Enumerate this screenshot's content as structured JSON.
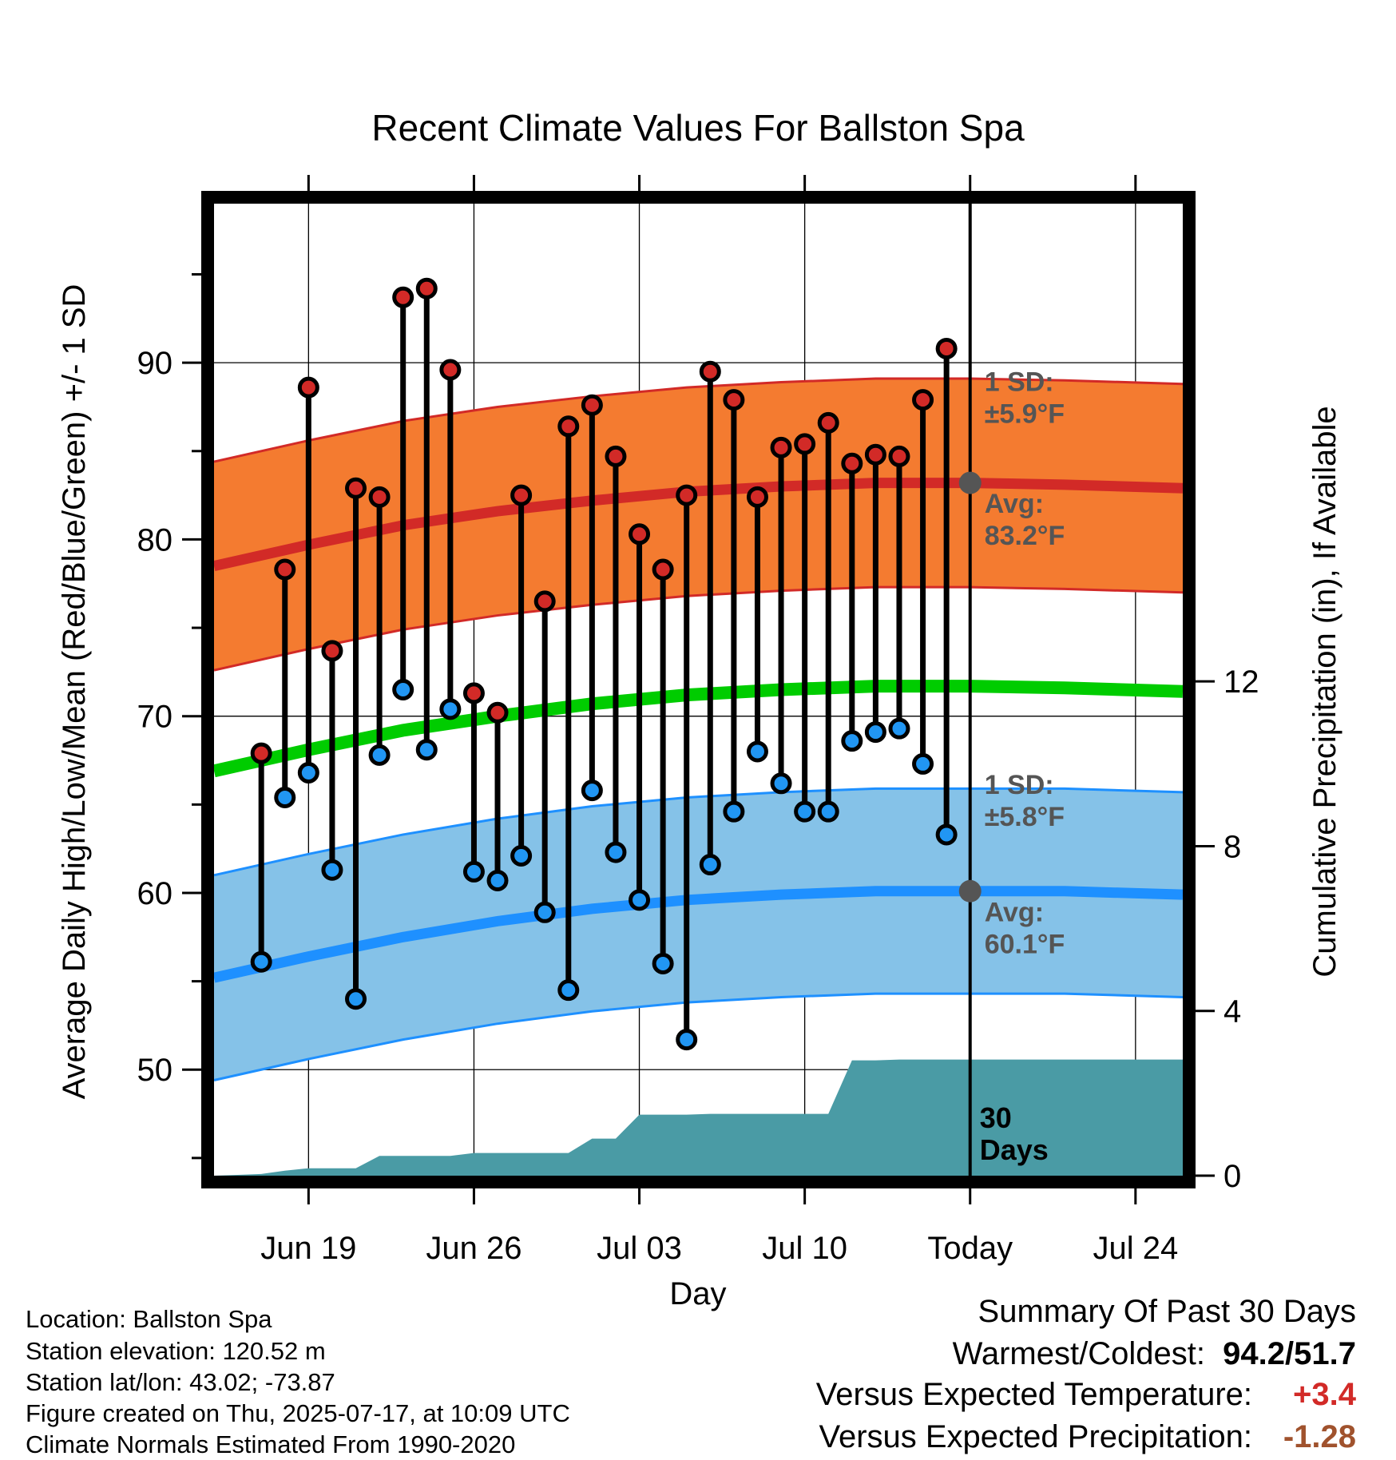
{
  "chart_data": {
    "type": "line",
    "title": "Recent Climate Values For Ballston Spa",
    "xlabel": "Day",
    "ylabel_left": "Average Daily High/Low/Mean (Red/Blue/Green) +/- 1 SD",
    "ylabel_right": "Cumulative Precipitation (in), If Available",
    "x_range": [
      "2025-06-15",
      "2025-07-26"
    ],
    "y_range_left": [
      44,
      99
    ],
    "y_range_right": [
      0,
      23.6
    ],
    "x_ticks": [
      {
        "date": "2025-06-19",
        "label": "Jun 19"
      },
      {
        "date": "2025-06-26",
        "label": "Jun 26"
      },
      {
        "date": "2025-07-03",
        "label": "Jul 03"
      },
      {
        "date": "2025-07-10",
        "label": "Jul 10"
      },
      {
        "date": "2025-07-17",
        "label": "Today"
      },
      {
        "date": "2025-07-24",
        "label": "Jul 24"
      }
    ],
    "y_ticks_left": [
      50,
      60,
      70,
      80,
      90
    ],
    "y_ticks_right": [
      0,
      4,
      8,
      12
    ],
    "grid": true,
    "today": "2025-07-17",
    "days": [
      "2025-06-17",
      "2025-06-18",
      "2025-06-19",
      "2025-06-20",
      "2025-06-21",
      "2025-06-22",
      "2025-06-23",
      "2025-06-24",
      "2025-06-25",
      "2025-06-26",
      "2025-06-27",
      "2025-06-28",
      "2025-06-29",
      "2025-06-30",
      "2025-07-01",
      "2025-07-02",
      "2025-07-03",
      "2025-07-04",
      "2025-07-05",
      "2025-07-06",
      "2025-07-07",
      "2025-07-08",
      "2025-07-09",
      "2025-07-10",
      "2025-07-11",
      "2025-07-12",
      "2025-07-13",
      "2025-07-14",
      "2025-07-15",
      "2025-07-16"
    ],
    "daily_high": [
      67.9,
      78.3,
      88.6,
      73.7,
      82.9,
      82.4,
      93.7,
      94.2,
      89.6,
      71.3,
      70.2,
      82.5,
      76.5,
      86.4,
      87.6,
      84.7,
      80.3,
      78.3,
      82.5,
      89.5,
      87.9,
      82.4,
      85.2,
      85.4,
      86.6,
      84.3,
      84.8,
      84.7,
      87.9,
      90.8
    ],
    "daily_low": [
      56.1,
      65.4,
      66.8,
      61.3,
      54.0,
      67.8,
      71.5,
      68.1,
      70.4,
      61.2,
      60.7,
      62.1,
      58.9,
      54.5,
      65.8,
      62.3,
      59.6,
      56.0,
      51.7,
      61.6,
      64.6,
      68.0,
      66.2,
      64.6,
      64.6,
      68.6,
      69.1,
      69.3,
      67.3,
      63.3
    ],
    "normal_dates": [
      "2025-06-15",
      "2025-06-19",
      "2025-06-23",
      "2025-06-27",
      "2025-07-01",
      "2025-07-05",
      "2025-07-09",
      "2025-07-13",
      "2025-07-17",
      "2025-07-21",
      "2025-07-26"
    ],
    "normal_high": [
      78.5,
      79.7,
      80.8,
      81.6,
      82.2,
      82.7,
      83.0,
      83.2,
      83.2,
      83.1,
      82.9
    ],
    "normal_low": [
      55.2,
      56.4,
      57.5,
      58.4,
      59.1,
      59.6,
      59.9,
      60.1,
      60.1,
      60.1,
      59.9
    ],
    "normal_mean": [
      66.9,
      68.1,
      69.2,
      70.0,
      70.7,
      71.2,
      71.5,
      71.7,
      71.7,
      71.6,
      71.4
    ],
    "sd_high": 5.9,
    "sd_low": 5.8,
    "precip_dates": [
      "2025-06-15",
      "2025-06-16",
      "2025-06-17",
      "2025-06-18",
      "2025-06-19",
      "2025-06-20",
      "2025-06-21",
      "2025-06-22",
      "2025-06-23",
      "2025-06-24",
      "2025-06-25",
      "2025-06-26",
      "2025-06-27",
      "2025-06-28",
      "2025-06-29",
      "2025-06-30",
      "2025-07-01",
      "2025-07-02",
      "2025-07-03",
      "2025-07-04",
      "2025-07-05",
      "2025-07-06",
      "2025-07-07",
      "2025-07-08",
      "2025-07-09",
      "2025-07-10",
      "2025-07-11",
      "2025-07-12",
      "2025-07-13",
      "2025-07-14",
      "2025-07-15",
      "2025-07-16",
      "2025-07-17",
      "2025-07-20",
      "2025-07-26"
    ],
    "precip_cum": [
      0,
      0.02,
      0.04,
      0.12,
      0.18,
      0.18,
      0.18,
      0.48,
      0.48,
      0.48,
      0.48,
      0.55,
      0.55,
      0.55,
      0.55,
      0.55,
      0.9,
      0.9,
      1.48,
      1.48,
      1.48,
      1.5,
      1.5,
      1.5,
      1.5,
      1.5,
      1.5,
      2.8,
      2.8,
      2.82,
      2.82,
      2.82,
      2.82,
      2.82,
      2.82
    ],
    "annotations": [
      {
        "line1": "1 SD:",
        "line2": "±5.9°F"
      },
      {
        "line1": "Avg:",
        "line2": "83.2°F"
      },
      {
        "line1": "1 SD:",
        "line2": "±5.8°F"
      },
      {
        "line1": "Avg:",
        "line2": "60.1°F"
      },
      {
        "line1": "30",
        "line2": "Days"
      }
    ],
    "colors": {
      "high_band": "#f47b30",
      "high_line": "#d22a27",
      "low_band": "#85c2e8",
      "low_line": "#1e90ff",
      "mean_line": "#00cc00",
      "precip": "#4a9ba5",
      "high_dot": "#d22a27",
      "low_dot": "#2196f3"
    }
  },
  "footer": {
    "location": "Location: Ballston Spa",
    "elevation": "Station elevation: 120.52 m",
    "latlon": "Station lat/lon: 43.02; -73.87",
    "created": "Figure created on Thu, 2025-07-17, at 10:09 UTC",
    "normals": "Climate Normals Estimated From 1990-2020"
  },
  "summary": {
    "title": "Summary Of Past 30 Days",
    "warmest_label": "Warmest/Coldest:",
    "warmest_value": "94.2/51.7",
    "temp_label": "Versus Expected Temperature:",
    "temp_value": "+3.4",
    "temp_color": "#d22a27",
    "precip_label": "Versus Expected Precipitation:",
    "precip_value": "-1.28",
    "precip_color": "#a0522d"
  }
}
